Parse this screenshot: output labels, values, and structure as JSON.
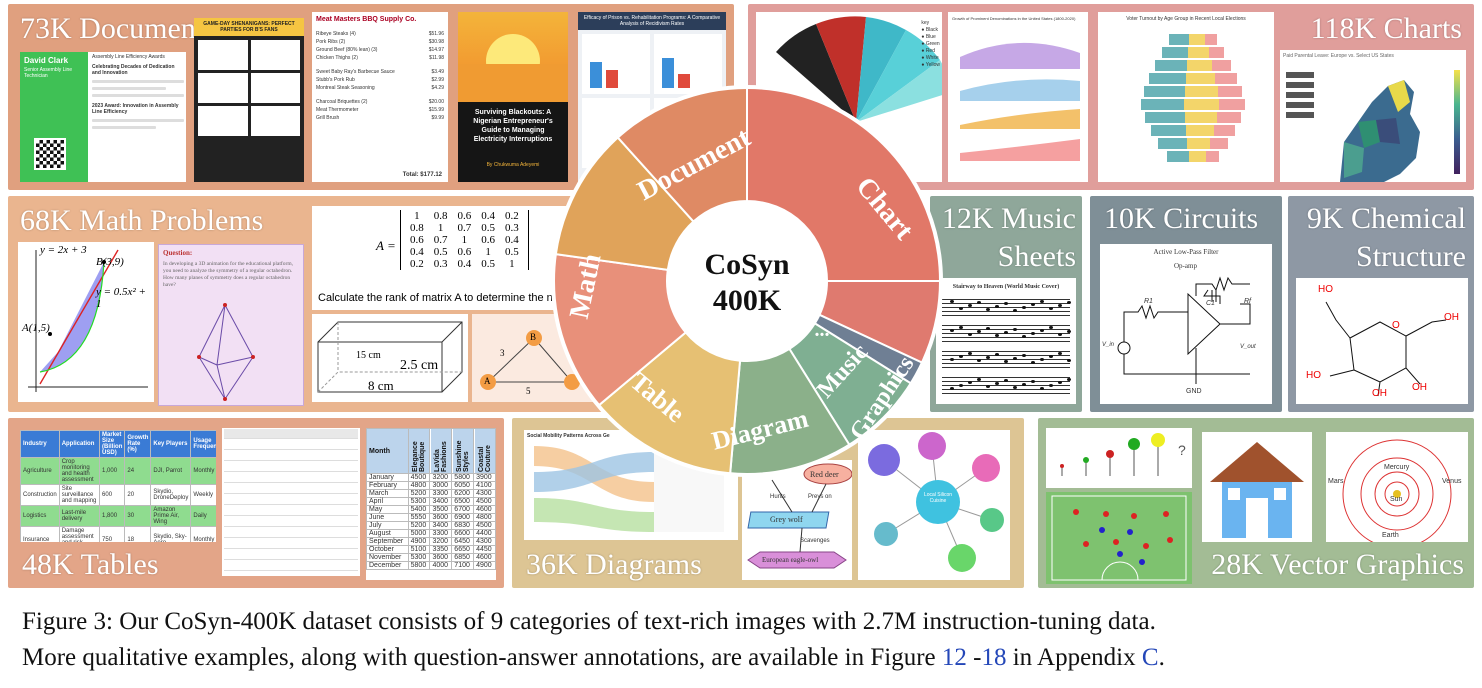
{
  "panels": {
    "documents": "73K Documents",
    "charts": "118K Charts",
    "math": "68K Math Problems",
    "music_line1": "12K Music",
    "music_line2": "Sheets",
    "circuits": "10K Circuits",
    "chem_line1": "9K Chemical",
    "chem_line2": "Structure",
    "tables": "48K Tables",
    "diagrams": "36K Diagrams",
    "vector": "28K Vector Graphics"
  },
  "wheel": {
    "center_line1": "CoSyn",
    "center_line2": "400K",
    "labels": [
      "Document",
      "Chart",
      "Math",
      "Table",
      "Diagram",
      "Music",
      "Graphics",
      "..."
    ]
  },
  "thumbs": {
    "resume_name": "David Clark",
    "resume_role": "Senior Assembly Line Technician",
    "award_title": "Assembly Line Efficiency Awards",
    "award_heading": "Celebrating Decades of Dedication and Innovation",
    "award_sub": "2023 Award: Innovation in Assembly Line Efficiency",
    "game_title": "GAME-DAY SHENANIGANS: PERFECT PARTIES FOR B'S FANS",
    "bbq_title": "Meat Masters BBQ Supply Co.",
    "bbq_items": [
      [
        "Ribeye Steaks (4)",
        "$51.96"
      ],
      [
        "Pork Ribs (2)",
        "$30.98"
      ],
      [
        "Ground Beef (80% lean) (3)",
        "$14.97"
      ],
      [
        "Chicken Thighs (2)",
        "$11.98"
      ],
      [
        "Sweet Baby Ray's Barbecue Sauce",
        "$3.49"
      ],
      [
        "Stubb's Pork Rub",
        "$2.99"
      ],
      [
        "Montreal Steak Seasoning",
        "$4.29"
      ],
      [
        "Charcoal Briquettes (2)",
        "$20.00"
      ],
      [
        "Meat Thermometer",
        "$15.99"
      ],
      [
        "Grill Brush",
        "$9.99"
      ]
    ],
    "bbq_total": "Total: $177.12",
    "book_title": "Surviving Blackouts: A Nigerian Entrepreneur's Guide to Managing Electricity Interruptions",
    "book_author": "By Chukwuma Adeyemi",
    "efficacy_title": "Efficacy of Prison vs. Rehabilitation Programs: A Comparative Analysis of Recidivism Rates",
    "line_chart_title": "Growth of Prominent Denominations in the United States (1800-2020)",
    "pyramid_title": "Voter Turnout by Age Group in Recent Local Elections",
    "map_title": "Paid Parental Leave: Europe vs. Select US States",
    "math_eq1": "y = 2x + 3",
    "math_eq2": "y = 0.5x² + 1",
    "math_pt1": "B(3,9)",
    "math_pt2": "A(1,5)",
    "question_label": "Question:",
    "question_text": "In developing a 3D animation for the educational platform, you need to analyze the symmetry of a regular octahedron. How many planes of symmetry does a regular octahedron have?",
    "matrix_rows": [
      [
        "1",
        "0.8",
        "0.6",
        "0.4",
        "0.2"
      ],
      [
        "0.8",
        "1",
        "0.7",
        "0.5",
        "0.3"
      ],
      [
        "0.6",
        "0.7",
        "1",
        "0.6",
        "0.4"
      ],
      [
        "0.4",
        "0.5",
        "0.6",
        "1",
        "0.5"
      ],
      [
        "0.2",
        "0.3",
        "0.4",
        "0.5",
        "1"
      ]
    ],
    "matrix_label": "A =",
    "matrix_question": "Calculate the rank of matrix A to determine the nu",
    "box_dims": [
      "15 cm",
      "2.5 cm",
      "8 cm"
    ],
    "graph_nodes": [
      "B",
      "A"
    ],
    "graph_weights": [
      "3",
      "5"
    ],
    "music_title": "Stairway to Heaven (World Music Cover)",
    "circuit_title": "Active Low-Pass Filter",
    "circuit_opamp": "Op-amp",
    "circuit_gnd": "GND",
    "circuit_vin": "V_in",
    "circuit_vout": "V_out",
    "circuit_r1": "R1",
    "circuit_c1": "C1",
    "circuit_rf": "Rf",
    "chem_labels": [
      "HO",
      "O",
      "OH",
      "HO",
      "OH",
      "OH"
    ],
    "table1_headers": [
      "Industry",
      "Application",
      "Market Size (Billion USD)",
      "Growth Rate (%)",
      "Key Players",
      "Usage Frequency"
    ],
    "table1_rows": [
      [
        "Agriculture",
        "Crop monitoring and health assessment",
        "1,000",
        "24",
        "DJI, Parrot",
        "Monthly"
      ],
      [
        "Construction",
        "Site surveillance and mapping",
        "600",
        "20",
        "Skydio, DroneDeploy",
        "Weekly"
      ],
      [
        "Logistics",
        "Last-mile delivery",
        "1,800",
        "30",
        "Amazon Prime Air, Wing",
        "Daily"
      ],
      [
        "Insurance",
        "Damage assessment and risk evaluation",
        "750",
        "18",
        "Skydio, Sky-Aero",
        "Monthly"
      ],
      [
        "Public Safety",
        "Search and rescue operations",
        "400",
        "15",
        "DroneShield, FLIR",
        "Occasional"
      ],
      [
        "Energy",
        "Infrastructure inspection",
        "900",
        "22",
        "DroneBase, Skyfish",
        "Quarterly"
      ]
    ],
    "table3_headers": [
      "Month",
      "Elegance Boutique",
      "LaVida Fashions",
      "Sunshine Styles",
      "Coastal Couture"
    ],
    "table3_rows": [
      [
        "January",
        "4500",
        "3200",
        "5800",
        "3900"
      ],
      [
        "February",
        "4800",
        "3000",
        "6050",
        "4100"
      ],
      [
        "March",
        "5200",
        "3300",
        "6200",
        "4300"
      ],
      [
        "April",
        "5300",
        "3400",
        "6500",
        "4500"
      ],
      [
        "May",
        "5400",
        "3500",
        "6700",
        "4600"
      ],
      [
        "June",
        "5550",
        "3600",
        "6900",
        "4800"
      ],
      [
        "July",
        "5200",
        "3400",
        "6830",
        "4500"
      ],
      [
        "August",
        "5000",
        "3300",
        "6600",
        "4400"
      ],
      [
        "September",
        "4900",
        "3200",
        "6450",
        "4300"
      ],
      [
        "October",
        "5100",
        "3350",
        "6650",
        "4450"
      ],
      [
        "November",
        "5300",
        "3600",
        "6850",
        "4600"
      ],
      [
        "December",
        "5800",
        "4000",
        "7100",
        "4900"
      ]
    ],
    "sankey_title": "Social Mobility Patterns Across Ge",
    "food_nodes": [
      "Red deer",
      "Grey wolf",
      "European eagle-owl"
    ],
    "food_edges": [
      "Hunts",
      "Preys on",
      "Scavenges"
    ],
    "mind_center": "Local Silicon Cuisine",
    "planet_labels": [
      "Mercury",
      "Mars",
      "Venus",
      "Sun",
      "Earth"
    ],
    "vg_question": "?"
  },
  "caption": {
    "line1": "Figure 3: Our CoSyn-400K dataset consists of 9 categories of text-rich images with 2.7M instruction-tuning data.",
    "line2_pre": "More qualitative examples, along with question-answer annotations, are available in Figure ",
    "ref1": "12",
    "mid": " -",
    "ref2": "18",
    "line2_mid": " in Appendix ",
    "ref3": "C",
    "end": "."
  },
  "colors": {
    "documents": "#e0a07f",
    "charts": "#e09e9b",
    "math": "#eab58f",
    "music": "#8fa79a",
    "circuits": "#7f8f97",
    "chemical": "#8e98a4",
    "tables": "#e3a588",
    "diagrams": "#ddc594",
    "vector": "#a3bc95"
  }
}
